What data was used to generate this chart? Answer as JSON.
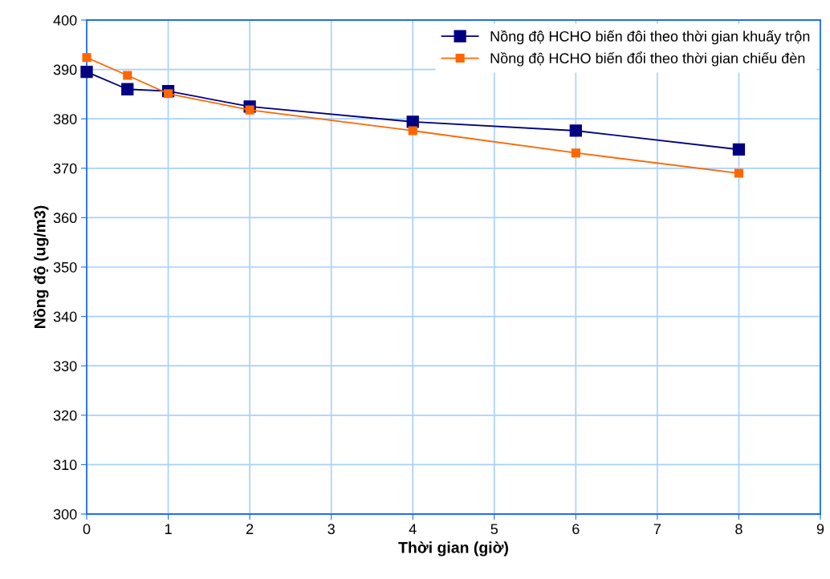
{
  "chart_data": {
    "type": "line",
    "xlabel": "Thời gian (giờ)",
    "ylabel": "Nồng độ (ug/m3)",
    "x": [
      0,
      0.5,
      1,
      2,
      4,
      6,
      8
    ],
    "series": [
      {
        "name": "Nồng độ HCHO biến đôi theo thời gian khuấy trộn",
        "color": "#000080",
        "values": [
          389.5,
          386.0,
          385.6,
          382.5,
          379.4,
          377.6,
          373.8
        ]
      },
      {
        "name": "Nồng độ HCHO biến đổi theo thời gian chiếu đèn",
        "color": "#ff6600",
        "values": [
          392.4,
          388.8,
          385.1,
          381.8,
          377.6,
          373.1,
          369.0
        ]
      }
    ],
    "xlim": [
      0,
      9
    ],
    "xticks": [
      0,
      1,
      2,
      3,
      4,
      5,
      6,
      7,
      8,
      9
    ],
    "ylim": [
      300,
      400
    ],
    "yticks": [
      300,
      310,
      320,
      330,
      340,
      350,
      360,
      370,
      380,
      390,
      400
    ],
    "grid": true,
    "legend": "top right",
    "marker": "square",
    "line_style": "solid"
  }
}
